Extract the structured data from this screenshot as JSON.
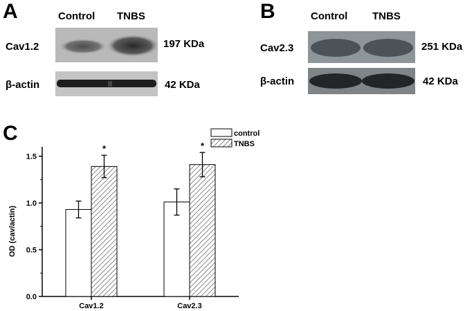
{
  "panel_a": {
    "letter": "A",
    "lanes": [
      "Control",
      "TNBS"
    ],
    "rows": [
      {
        "protein": "Cav1.2",
        "size": "197 KDa"
      },
      {
        "protein": "β-actin",
        "size": "42 KDa"
      }
    ]
  },
  "panel_b": {
    "letter": "B",
    "lanes": [
      "Control",
      "TNBS"
    ],
    "rows": [
      {
        "protein": "Cav2.3",
        "size": "251 KDa"
      },
      {
        "protein": "β-actin",
        "size": "42 KDa"
      }
    ]
  },
  "panel_c": {
    "letter": "C"
  },
  "chart_data": {
    "type": "bar",
    "categories": [
      "Cav1.2",
      "Cav2.3"
    ],
    "series": [
      {
        "name": "control",
        "values": [
          0.93,
          1.01
        ],
        "errors": [
          0.09,
          0.14
        ],
        "fill": "#ffffff"
      },
      {
        "name": "TNBS",
        "values": [
          1.39,
          1.41
        ],
        "errors": [
          0.12,
          0.13
        ],
        "fill": "hatched",
        "significance": [
          "*",
          "*"
        ]
      }
    ],
    "ylabel": "OD (cav/actin)",
    "xlabel": "",
    "ylim": [
      0,
      1.6
    ],
    "yticks": [
      "0.0",
      "0.5",
      "1.0",
      "1.5"
    ],
    "legend_position": "top-right",
    "grid": false
  }
}
